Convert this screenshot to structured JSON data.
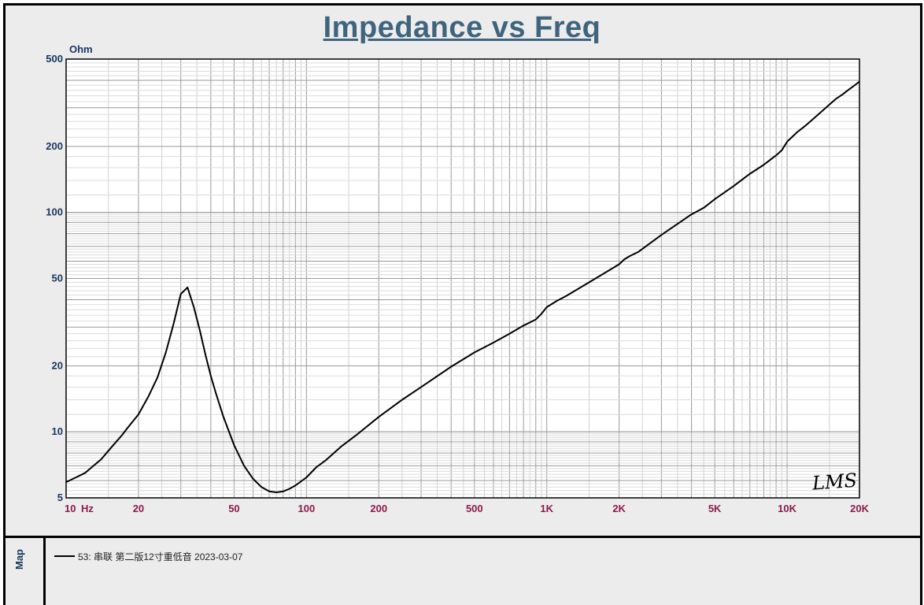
{
  "chart_data": {
    "type": "line",
    "title": "Impedance vs Freq",
    "ylabel_unit": "Ohm",
    "xlabel_unit": "Hz",
    "x_scale": "log",
    "y_scale": "log",
    "xlim": [
      10,
      20000
    ],
    "ylim": [
      5,
      500
    ],
    "x_ticks": [
      {
        "value": 10,
        "label": "10"
      },
      {
        "value": 20,
        "label": "20"
      },
      {
        "value": 50,
        "label": "50"
      },
      {
        "value": 100,
        "label": "100"
      },
      {
        "value": 200,
        "label": "200"
      },
      {
        "value": 500,
        "label": "500"
      },
      {
        "value": 1000,
        "label": "1K"
      },
      {
        "value": 2000,
        "label": "2K"
      },
      {
        "value": 5000,
        "label": "5K"
      },
      {
        "value": 10000,
        "label": "10K"
      },
      {
        "value": 20000,
        "label": "20K"
      }
    ],
    "y_ticks": [
      {
        "value": 5,
        "label": "5"
      },
      {
        "value": 10,
        "label": "10"
      },
      {
        "value": 20,
        "label": "20"
      },
      {
        "value": 50,
        "label": "50"
      },
      {
        "value": 100,
        "label": "100"
      },
      {
        "value": 200,
        "label": "200"
      },
      {
        "value": 500,
        "label": "500"
      }
    ],
    "grid": true,
    "watermark": "LMS",
    "series": [
      {
        "name": "53: 串联 第二版12寸重低音 2023-03-07",
        "color": "#000000",
        "x": [
          10,
          11,
          12,
          13,
          14,
          15,
          16,
          17,
          18,
          20,
          22,
          24,
          26,
          28,
          30,
          32,
          34,
          36,
          38,
          40,
          42,
          45,
          50,
          55,
          60,
          65,
          70,
          75,
          80,
          85,
          90,
          95,
          100,
          110,
          120,
          140,
          160,
          200,
          250,
          300,
          400,
          500,
          600,
          700,
          800,
          900,
          950,
          1000,
          1100,
          1200,
          1500,
          2000,
          2100,
          2200,
          2400,
          3000,
          4000,
          4500,
          5000,
          6000,
          7000,
          8000,
          9000,
          9500,
          10000,
          11000,
          12000,
          13000,
          14000,
          15000,
          16000,
          17000,
          18000,
          19000,
          20000
        ],
        "y": [
          5.9,
          6.2,
          6.5,
          7.0,
          7.5,
          8.2,
          8.9,
          9.6,
          10.4,
          12.0,
          14.5,
          17.7,
          23.0,
          31.0,
          42.5,
          45.5,
          37.0,
          29.0,
          22.5,
          18.0,
          15.0,
          11.8,
          8.7,
          7.0,
          6.1,
          5.6,
          5.35,
          5.3,
          5.35,
          5.5,
          5.7,
          5.95,
          6.2,
          6.9,
          7.4,
          8.6,
          9.6,
          11.7,
          14.0,
          16.0,
          19.8,
          23.0,
          25.5,
          28.0,
          30.5,
          32.5,
          34.5,
          37.0,
          39.5,
          41.5,
          48.0,
          58.0,
          61.0,
          63.0,
          66.0,
          79.0,
          98.0,
          105.0,
          115.0,
          132.0,
          150.0,
          165.0,
          182.0,
          192.0,
          210.0,
          232.0,
          250.0,
          270.0,
          290.0,
          310.0,
          330.0,
          345.0,
          362.0,
          378.0,
          395.0
        ]
      }
    ]
  },
  "legend": {
    "side_label": "Map",
    "entry": "53: 串联 第二版12寸重低音 2023-03-07"
  }
}
